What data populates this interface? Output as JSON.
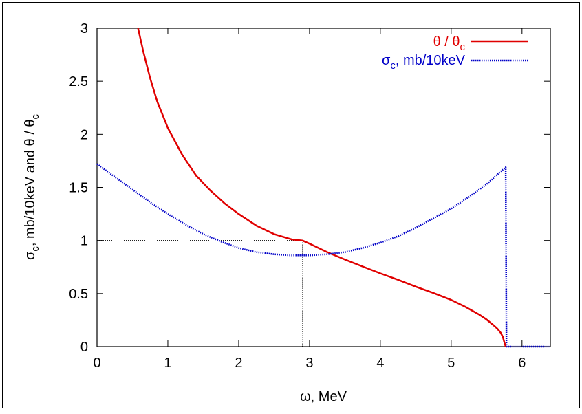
{
  "chart_data": {
    "type": "line",
    "title": "",
    "xlabel": "ω, MeV",
    "ylabel": {
      "sigma": "σ",
      "sub_c": "c",
      "mid": ", mb/10keV and θ / θ",
      "sub_c2": "c"
    },
    "xlim": [
      0,
      6.4
    ],
    "ylim": [
      0,
      3
    ],
    "x_ticks": [
      0,
      1,
      2,
      3,
      4,
      5,
      6
    ],
    "y_ticks": [
      0,
      0.5,
      1,
      1.5,
      2,
      2.5,
      3
    ],
    "x_tick_labels": [
      "0",
      "1",
      "2",
      "3",
      "4",
      "5",
      "6"
    ],
    "y_tick_labels": [
      "0",
      "0.5",
      "1",
      "1.5",
      "2",
      "2.5",
      "3"
    ],
    "grid": false,
    "legend_position": "top-right",
    "legend": {
      "theta": {
        "a": "θ / θ",
        "sub": "c"
      },
      "sigma": {
        "a": "σ",
        "sub": "c",
        "b": ", mb/10keV"
      }
    },
    "colors": {
      "theta": "#e00000",
      "sigma": "#0000c8",
      "guide": "#000000"
    },
    "series": [
      {
        "key": "theta",
        "style": "solid",
        "x": [
          0.58,
          0.65,
          0.75,
          0.85,
          1.0,
          1.2,
          1.4,
          1.6,
          1.8,
          2.0,
          2.25,
          2.5,
          2.75,
          2.9,
          3.0,
          3.25,
          3.5,
          3.75,
          4.0,
          4.25,
          4.5,
          4.75,
          5.0,
          5.2,
          5.4,
          5.5,
          5.6,
          5.65,
          5.7,
          5.73,
          5.75,
          5.77
        ],
        "y": [
          3.0,
          2.79,
          2.53,
          2.31,
          2.06,
          1.81,
          1.61,
          1.47,
          1.35,
          1.25,
          1.14,
          1.06,
          1.01,
          1.0,
          0.97,
          0.89,
          0.82,
          0.755,
          0.69,
          0.63,
          0.565,
          0.505,
          0.44,
          0.375,
          0.3,
          0.255,
          0.2,
          0.17,
          0.13,
          0.09,
          0.04,
          0.0
        ]
      },
      {
        "key": "sigma",
        "style": "dotted",
        "x": [
          0.0,
          0.25,
          0.5,
          0.75,
          1.0,
          1.25,
          1.5,
          1.75,
          2.0,
          2.25,
          2.5,
          2.75,
          3.0,
          3.25,
          3.5,
          3.75,
          4.0,
          4.25,
          4.5,
          4.75,
          5.0,
          5.25,
          5.5,
          5.75,
          5.77,
          5.78,
          6.0,
          6.2,
          6.4
        ],
        "y": [
          1.72,
          1.6,
          1.48,
          1.36,
          1.25,
          1.15,
          1.06,
          0.99,
          0.93,
          0.89,
          0.87,
          0.86,
          0.86,
          0.87,
          0.89,
          0.93,
          0.98,
          1.04,
          1.12,
          1.21,
          1.3,
          1.41,
          1.53,
          1.68,
          1.69,
          0.0,
          0.0,
          0.0,
          0.0
        ]
      }
    ],
    "guides": {
      "x": 2.9,
      "y": 1.0
    }
  }
}
